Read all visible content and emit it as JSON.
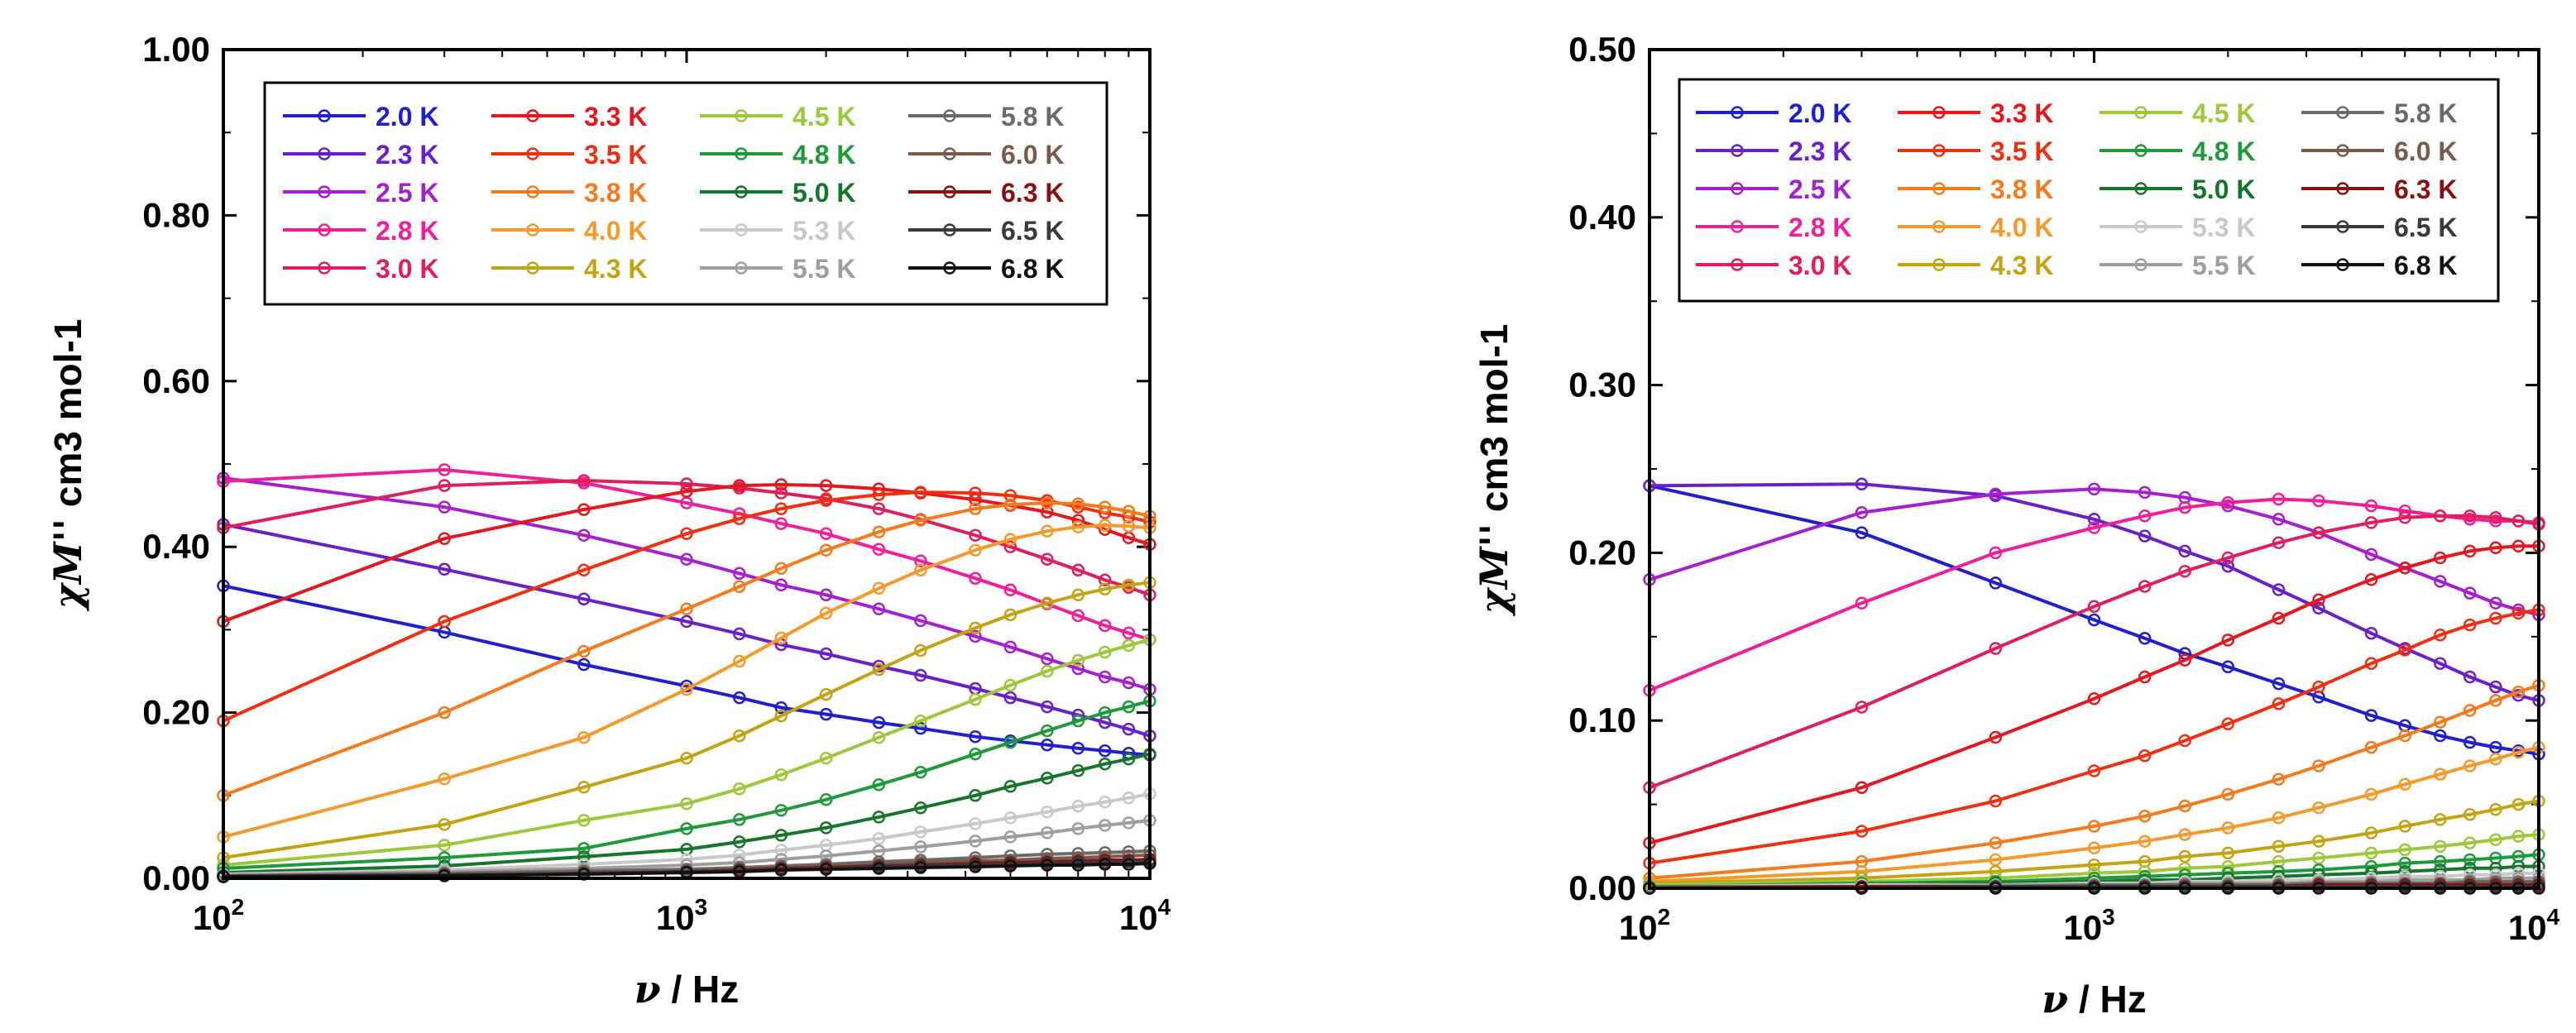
{
  "chart_data": [
    {
      "type": "line",
      "panel": "left",
      "xlabel": "ν / Hz",
      "xlabel_var": "ν",
      "xlabel_unit": " / Hz",
      "ylabel_var": "χM''",
      "ylabel_unit": "cm3 mol-1",
      "xscale": "log",
      "xlim": [
        100,
        10000
      ],
      "ylim": [
        0,
        1.0
      ],
      "xticks": [
        {
          "value": 100,
          "base": "10",
          "exp": "2"
        },
        {
          "value": 1000,
          "base": "10",
          "exp": "3"
        },
        {
          "value": 10000,
          "base": "10",
          "exp": "4"
        }
      ],
      "yticks": [
        {
          "value": 0,
          "label": "0.00"
        },
        {
          "value": 0.2,
          "label": "0.20"
        },
        {
          "value": 0.4,
          "label": "0.40"
        },
        {
          "value": 0.6,
          "label": "0.60"
        },
        {
          "value": 0.8,
          "label": "0.80"
        },
        {
          "value": 1.0,
          "label": "1.00"
        }
      ],
      "x": [
        100,
        300,
        600,
        1000,
        1300,
        1600,
        2000,
        2600,
        3200,
        4200,
        5000,
        6000,
        7000,
        8000,
        9000,
        10000
      ],
      "legend_columns": 4,
      "series": [
        {
          "name": "2.0 K",
          "color": "#1f1fcc",
          "values": [
            0.353,
            0.297,
            0.258,
            0.232,
            0.218,
            0.206,
            0.198,
            0.188,
            0.181,
            0.171,
            0.166,
            0.161,
            0.157,
            0.154,
            0.151,
            0.149
          ]
        },
        {
          "name": "2.3 K",
          "color": "#6a1fc9",
          "values": [
            0.427,
            0.373,
            0.337,
            0.31,
            0.295,
            0.282,
            0.271,
            0.256,
            0.245,
            0.229,
            0.218,
            0.207,
            0.197,
            0.188,
            0.18,
            0.172
          ]
        },
        {
          "name": "2.5 K",
          "color": "#a51fd0",
          "values": [
            0.483,
            0.448,
            0.414,
            0.385,
            0.368,
            0.354,
            0.342,
            0.325,
            0.311,
            0.292,
            0.279,
            0.265,
            0.253,
            0.243,
            0.236,
            0.228
          ]
        },
        {
          "name": "2.8 K",
          "color": "#ee1f9a",
          "values": [
            0.479,
            0.493,
            0.477,
            0.453,
            0.44,
            0.428,
            0.416,
            0.397,
            0.383,
            0.362,
            0.348,
            0.331,
            0.317,
            0.305,
            0.296,
            0.288
          ]
        },
        {
          "name": "3.0 K",
          "color": "#de1f5c",
          "values": [
            0.423,
            0.474,
            0.48,
            0.476,
            0.471,
            0.465,
            0.458,
            0.446,
            0.433,
            0.414,
            0.4,
            0.385,
            0.372,
            0.36,
            0.351,
            0.342
          ]
        },
        {
          "name": "3.3 K",
          "color": "#e4161e",
          "values": [
            0.31,
            0.41,
            0.445,
            0.467,
            0.474,
            0.475,
            0.474,
            0.47,
            0.465,
            0.457,
            0.45,
            0.442,
            0.432,
            0.421,
            0.411,
            0.403
          ]
        },
        {
          "name": "3.5 K",
          "color": "#f02f10",
          "values": [
            0.19,
            0.31,
            0.372,
            0.416,
            0.434,
            0.446,
            0.456,
            0.463,
            0.466,
            0.465,
            0.462,
            0.456,
            0.448,
            0.441,
            0.436,
            0.43
          ]
        },
        {
          "name": "3.8 K",
          "color": "#f57a1c",
          "values": [
            0.1,
            0.2,
            0.274,
            0.325,
            0.352,
            0.374,
            0.396,
            0.418,
            0.432,
            0.446,
            0.451,
            0.453,
            0.452,
            0.448,
            0.443,
            0.437
          ]
        },
        {
          "name": "4.0 K",
          "color": "#f59a2a",
          "values": [
            0.05,
            0.12,
            0.17,
            0.228,
            0.262,
            0.29,
            0.32,
            0.35,
            0.372,
            0.396,
            0.409,
            0.419,
            0.424,
            0.426,
            0.425,
            0.423
          ]
        },
        {
          "name": "4.3 K",
          "color": "#c4a312",
          "values": [
            0.025,
            0.065,
            0.11,
            0.145,
            0.172,
            0.196,
            0.222,
            0.252,
            0.275,
            0.302,
            0.318,
            0.332,
            0.342,
            0.349,
            0.354,
            0.357
          ]
        },
        {
          "name": "4.5 K",
          "color": "#9cc83a",
          "values": [
            0.016,
            0.04,
            0.07,
            0.09,
            0.108,
            0.125,
            0.145,
            0.17,
            0.19,
            0.216,
            0.233,
            0.25,
            0.263,
            0.273,
            0.281,
            0.288
          ]
        },
        {
          "name": "4.8 K",
          "color": "#1f9a3a",
          "values": [
            0.012,
            0.025,
            0.036,
            0.06,
            0.071,
            0.082,
            0.095,
            0.113,
            0.128,
            0.15,
            0.164,
            0.178,
            0.19,
            0.2,
            0.207,
            0.214
          ]
        },
        {
          "name": "5.0 K",
          "color": "#15752a",
          "values": [
            0.007,
            0.015,
            0.026,
            0.035,
            0.044,
            0.052,
            0.061,
            0.074,
            0.085,
            0.1,
            0.111,
            0.121,
            0.13,
            0.138,
            0.144,
            0.15
          ]
        },
        {
          "name": "5.3 K",
          "color": "#c8c8c8",
          "values": [
            0.005,
            0.01,
            0.017,
            0.023,
            0.028,
            0.034,
            0.04,
            0.048,
            0.056,
            0.066,
            0.073,
            0.08,
            0.087,
            0.092,
            0.097,
            0.102
          ]
        },
        {
          "name": "5.5 K",
          "color": "#9e9e9e",
          "values": [
            0.004,
            0.008,
            0.012,
            0.016,
            0.019,
            0.023,
            0.027,
            0.033,
            0.038,
            0.045,
            0.05,
            0.055,
            0.06,
            0.064,
            0.067,
            0.07
          ]
        },
        {
          "name": "5.8 K",
          "color": "#6a6a6a",
          "values": [
            0.003,
            0.006,
            0.009,
            0.011,
            0.013,
            0.015,
            0.017,
            0.02,
            0.022,
            0.025,
            0.027,
            0.029,
            0.03,
            0.031,
            0.032,
            0.033
          ]
        },
        {
          "name": "6.0 K",
          "color": "#7a5a48",
          "values": [
            0.003,
            0.005,
            0.007,
            0.009,
            0.011,
            0.013,
            0.015,
            0.017,
            0.019,
            0.021,
            0.022,
            0.024,
            0.025,
            0.026,
            0.027,
            0.028
          ]
        },
        {
          "name": "6.3 K",
          "color": "#8a1010",
          "values": [
            0.002,
            0.004,
            0.006,
            0.008,
            0.01,
            0.012,
            0.013,
            0.015,
            0.016,
            0.018,
            0.019,
            0.02,
            0.021,
            0.022,
            0.022,
            0.023
          ]
        },
        {
          "name": "6.5 K",
          "color": "#3a3a3a",
          "values": [
            0.002,
            0.004,
            0.006,
            0.008,
            0.009,
            0.011,
            0.012,
            0.014,
            0.015,
            0.016,
            0.017,
            0.018,
            0.019,
            0.019,
            0.02,
            0.02
          ]
        },
        {
          "name": "6.8 K",
          "color": "#111111",
          "values": [
            0.002,
            0.003,
            0.005,
            0.007,
            0.008,
            0.01,
            0.011,
            0.012,
            0.013,
            0.014,
            0.015,
            0.016,
            0.016,
            0.017,
            0.017,
            0.018
          ]
        }
      ]
    },
    {
      "type": "line",
      "panel": "right",
      "xlabel": "ν / Hz",
      "xlabel_var": "ν",
      "xlabel_unit": " / Hz",
      "ylabel_var": "χM''",
      "ylabel_unit": "cm3 mol-1",
      "xscale": "log",
      "xlim": [
        100,
        10000
      ],
      "ylim": [
        0,
        0.5
      ],
      "xticks": [
        {
          "value": 100,
          "base": "10",
          "exp": "2"
        },
        {
          "value": 1000,
          "base": "10",
          "exp": "3"
        },
        {
          "value": 10000,
          "base": "10",
          "exp": "4"
        }
      ],
      "yticks": [
        {
          "value": 0,
          "label": "0.00"
        },
        {
          "value": 0.1,
          "label": "0.10"
        },
        {
          "value": 0.2,
          "label": "0.20"
        },
        {
          "value": 0.3,
          "label": "0.30"
        },
        {
          "value": 0.4,
          "label": "0.40"
        },
        {
          "value": 0.5,
          "label": "0.50"
        }
      ],
      "x": [
        100,
        300,
        600,
        1000,
        1300,
        1600,
        2000,
        2600,
        3200,
        4200,
        5000,
        6000,
        7000,
        8000,
        9000,
        10000
      ],
      "legend_columns": 4,
      "series": [
        {
          "name": "2.0 K",
          "color": "#1f1fcc",
          "values": [
            0.24,
            0.212,
            0.182,
            0.16,
            0.149,
            0.14,
            0.132,
            0.122,
            0.114,
            0.103,
            0.097,
            0.091,
            0.087,
            0.084,
            0.082,
            0.08
          ]
        },
        {
          "name": "2.3 K",
          "color": "#6a1fc9",
          "values": [
            0.24,
            0.241,
            0.234,
            0.22,
            0.21,
            0.201,
            0.192,
            0.178,
            0.167,
            0.152,
            0.143,
            0.134,
            0.126,
            0.12,
            0.115,
            0.112
          ]
        },
        {
          "name": "2.5 K",
          "color": "#a51fd0",
          "values": [
            0.184,
            0.224,
            0.235,
            0.238,
            0.236,
            0.233,
            0.228,
            0.22,
            0.212,
            0.199,
            0.191,
            0.183,
            0.176,
            0.17,
            0.166,
            0.163
          ]
        },
        {
          "name": "2.8 K",
          "color": "#ee1f9a",
          "values": [
            0.118,
            0.17,
            0.2,
            0.215,
            0.222,
            0.227,
            0.23,
            0.232,
            0.231,
            0.228,
            0.225,
            0.222,
            0.22,
            0.219,
            0.219,
            0.218
          ]
        },
        {
          "name": "3.0 K",
          "color": "#de1f5c",
          "values": [
            0.06,
            0.108,
            0.143,
            0.168,
            0.18,
            0.189,
            0.197,
            0.206,
            0.212,
            0.218,
            0.221,
            0.222,
            0.222,
            0.221,
            0.219,
            0.217
          ]
        },
        {
          "name": "3.3 K",
          "color": "#e4161e",
          "values": [
            0.027,
            0.06,
            0.09,
            0.113,
            0.126,
            0.136,
            0.148,
            0.161,
            0.172,
            0.184,
            0.191,
            0.197,
            0.201,
            0.203,
            0.204,
            0.204
          ]
        },
        {
          "name": "3.5 K",
          "color": "#f02f10",
          "values": [
            0.015,
            0.034,
            0.052,
            0.07,
            0.079,
            0.088,
            0.098,
            0.11,
            0.12,
            0.134,
            0.142,
            0.151,
            0.157,
            0.161,
            0.164,
            0.166
          ]
        },
        {
          "name": "3.8 K",
          "color": "#f57a1c",
          "values": [
            0.006,
            0.016,
            0.027,
            0.037,
            0.043,
            0.049,
            0.056,
            0.065,
            0.073,
            0.084,
            0.091,
            0.099,
            0.106,
            0.112,
            0.117,
            0.121
          ]
        },
        {
          "name": "4.0 K",
          "color": "#f59a2a",
          "values": [
            0.004,
            0.01,
            0.017,
            0.024,
            0.028,
            0.032,
            0.036,
            0.042,
            0.048,
            0.056,
            0.062,
            0.068,
            0.073,
            0.077,
            0.081,
            0.084
          ]
        },
        {
          "name": "4.3 K",
          "color": "#c4a312",
          "values": [
            0.003,
            0.006,
            0.01,
            0.014,
            0.016,
            0.019,
            0.021,
            0.025,
            0.028,
            0.033,
            0.037,
            0.041,
            0.044,
            0.047,
            0.05,
            0.052
          ]
        },
        {
          "name": "4.5 K",
          "color": "#9cc83a",
          "values": [
            0.002,
            0.004,
            0.006,
            0.009,
            0.01,
            0.012,
            0.013,
            0.016,
            0.018,
            0.021,
            0.023,
            0.025,
            0.027,
            0.029,
            0.031,
            0.032
          ]
        },
        {
          "name": "4.8 K",
          "color": "#1f9a3a",
          "values": [
            0.001,
            0.003,
            0.004,
            0.006,
            0.007,
            0.008,
            0.009,
            0.01,
            0.011,
            0.013,
            0.015,
            0.016,
            0.017,
            0.018,
            0.019,
            0.02
          ]
        },
        {
          "name": "5.0 K",
          "color": "#15752a",
          "values": [
            0.001,
            0.002,
            0.003,
            0.004,
            0.005,
            0.005,
            0.006,
            0.007,
            0.008,
            0.009,
            0.01,
            0.011,
            0.012,
            0.012,
            0.013,
            0.013
          ]
        },
        {
          "name": "5.3 K",
          "color": "#c8c8c8",
          "values": [
            0.001,
            0.002,
            0.002,
            0.003,
            0.003,
            0.004,
            0.004,
            0.005,
            0.005,
            0.006,
            0.007,
            0.007,
            0.008,
            0.008,
            0.009,
            0.009
          ]
        },
        {
          "name": "5.5 K",
          "color": "#9e9e9e",
          "values": [
            0.001,
            0.001,
            0.002,
            0.002,
            0.002,
            0.003,
            0.003,
            0.003,
            0.004,
            0.004,
            0.005,
            0.005,
            0.005,
            0.006,
            0.006,
            0.006
          ]
        },
        {
          "name": "5.8 K",
          "color": "#6a6a6a",
          "values": [
            0.001,
            0.001,
            0.001,
            0.002,
            0.002,
            0.002,
            0.002,
            0.002,
            0.003,
            0.003,
            0.003,
            0.003,
            0.004,
            0.004,
            0.004,
            0.004
          ]
        },
        {
          "name": "6.0 K",
          "color": "#7a5a48",
          "values": [
            0.0,
            0.001,
            0.001,
            0.001,
            0.001,
            0.002,
            0.002,
            0.002,
            0.002,
            0.002,
            0.002,
            0.003,
            0.003,
            0.003,
            0.003,
            0.003
          ]
        },
        {
          "name": "6.3 K",
          "color": "#8a1010",
          "values": [
            0.0,
            0.001,
            0.001,
            0.001,
            0.001,
            0.001,
            0.001,
            0.001,
            0.002,
            0.002,
            0.002,
            0.002,
            0.002,
            0.002,
            0.002,
            0.002
          ]
        },
        {
          "name": "6.5 K",
          "color": "#3a3a3a",
          "values": [
            0.0,
            0.0,
            0.001,
            0.001,
            0.001,
            0.001,
            0.001,
            0.001,
            0.001,
            0.001,
            0.001,
            0.001,
            0.001,
            0.001,
            0.001,
            0.001
          ]
        },
        {
          "name": "6.8 K",
          "color": "#111111",
          "values": [
            0.0,
            0.0,
            0.0,
            0.0,
            0.0,
            0.0,
            0.0,
            0.0,
            0.0,
            0.0,
            0.0,
            0.0,
            0.0,
            0.0,
            0.0,
            0.0
          ]
        }
      ]
    }
  ]
}
